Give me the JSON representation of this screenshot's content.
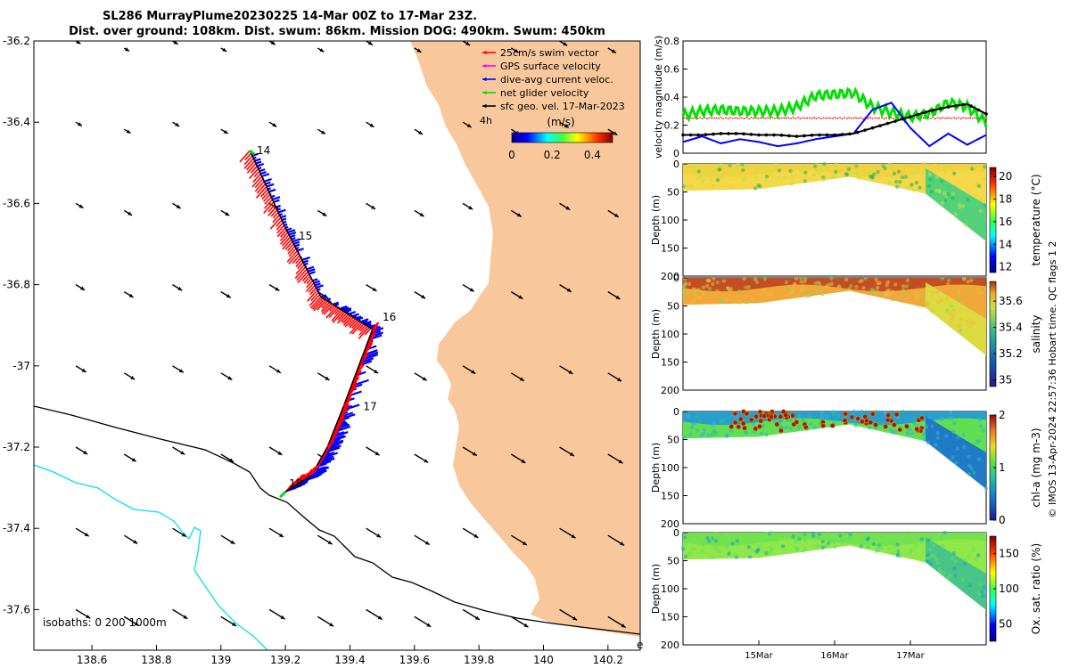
{
  "title": {
    "line1": "SL286 MurrayPlume20230225 14-Mar 00Z to 17-Mar 23Z.",
    "line2": "Dist. over ground: 108km. Dist. swum: 86km. Mission DOG: 490km. Swum: 450km"
  },
  "colors": {
    "land": "#f8c79b",
    "swim": "#ff0000",
    "gps": "#ff00ff",
    "dive": "#0000ff",
    "net": "#00e000",
    "geo": "#000000",
    "isobath200": "#000000",
    "isobath1000": "#00e0f0"
  },
  "chart_data": [
    {
      "type": "scatter",
      "panel": "map",
      "title": "Glider track and velocity vectors",
      "xlim": [
        138.42,
        140.3
      ],
      "ylim": [
        -37.7,
        -36.2
      ],
      "x_ticks": [
        "138.6",
        "138.8",
        "139",
        "139.2",
        "139.4",
        "139.6",
        "139.8",
        "140",
        "140.2"
      ],
      "y_ticks": [
        "-36.2",
        "-36.4",
        "-36.6",
        "-36.8",
        "-37",
        "-37.2",
        "-37.4",
        "-37.6"
      ],
      "track": {
        "lon": [
          139.09,
          139.2,
          139.31,
          139.47,
          139.38,
          139.33,
          139.28,
          139.2
        ],
        "lat": [
          -36.47,
          -36.66,
          -36.83,
          -36.91,
          -37.1,
          -37.2,
          -37.27,
          -37.31
        ]
      },
      "day_labels": [
        {
          "label": "14",
          "lon": 139.1,
          "lat": -36.47
        },
        {
          "label": "15",
          "lon": 139.23,
          "lat": -36.68
        },
        {
          "label": "16",
          "lon": 139.49,
          "lat": -36.88
        },
        {
          "label": "17",
          "lon": 139.43,
          "lat": -37.1
        },
        {
          "label": "18",
          "lon": 139.2,
          "lat": -37.29
        }
      ],
      "geo_vectors": {
        "lon": [
          138.55,
          138.7,
          138.85,
          139.0,
          139.15,
          139.3,
          139.45,
          139.6,
          139.75,
          139.9,
          140.05,
          140.2
        ],
        "lat": [
          -36.2,
          -36.4,
          -36.6,
          -36.8,
          -37.0,
          -37.2,
          -37.4,
          -37.6
        ]
      },
      "legend": [
        {
          "label": "25cm/s swim vector",
          "color": "#ff0000"
        },
        {
          "label": "GPS surface velocity",
          "color": "#ff00ff"
        },
        {
          "label": "dive-avg current veloc.",
          "color": "#0000ff"
        },
        {
          "label": "net glider velocity",
          "color": "#00e000"
        },
        {
          "label": "sfc geo. vel. 17-Mar-2023",
          "color": "#000000"
        }
      ],
      "legend_extra": "4h",
      "colorbar": {
        "label": "(m/s)",
        "ticks": [
          "0",
          "0.2",
          "0.4"
        ],
        "range": [
          0,
          0.5
        ]
      },
      "isobaths_label": "isobaths: 0   200  1000m",
      "edge_label": "e"
    },
    {
      "type": "line",
      "panel": "velocity",
      "ylabel": "velocity magnitude (m/s)",
      "ylim": [
        0,
        0.8
      ],
      "y_ticks": [
        "0",
        "0.2",
        "0.4",
        "0.6",
        "0.8"
      ],
      "x": [
        0,
        0.25,
        0.5,
        0.75,
        1,
        1.25,
        1.5,
        1.75,
        2,
        2.25,
        2.5,
        2.75,
        3,
        3.25,
        3.5,
        3.75,
        4
      ],
      "series": [
        {
          "name": "swim",
          "color": "#ff0000",
          "values": [
            0.25,
            0.25,
            0.25,
            0.25,
            0.25,
            0.25,
            0.25,
            0.25,
            0.25,
            0.25,
            0.25,
            0.25,
            0.25,
            0.25,
            0.25,
            0.25,
            0.25
          ]
        },
        {
          "name": "net",
          "color": "#00e000",
          "values": [
            0.27,
            0.3,
            0.31,
            0.3,
            0.3,
            0.3,
            0.33,
            0.41,
            0.42,
            0.43,
            0.33,
            0.29,
            0.26,
            0.28,
            0.36,
            0.33,
            0.22
          ]
        },
        {
          "name": "dive",
          "color": "#0000ff",
          "values": [
            0.08,
            0.12,
            0.07,
            0.1,
            0.08,
            0.05,
            0.07,
            0.1,
            0.12,
            0.14,
            0.31,
            0.36,
            0.18,
            0.05,
            0.14,
            0.06,
            0.13
          ]
        },
        {
          "name": "geo",
          "color": "#000000",
          "values": [
            0.13,
            0.13,
            0.14,
            0.14,
            0.13,
            0.13,
            0.12,
            0.13,
            0.13,
            0.14,
            0.18,
            0.22,
            0.26,
            0.3,
            0.33,
            0.35,
            0.28
          ]
        }
      ]
    },
    {
      "type": "heatmap",
      "panel": "temperature",
      "ylabel": "Depth (m)",
      "ylim": [
        0,
        200
      ],
      "y_ticks": [
        "0",
        "50",
        "100",
        "150",
        "200"
      ],
      "cbar_label": "temperature (°C)",
      "cbar_ticks": [
        "12",
        "14",
        "16",
        "18",
        "20"
      ],
      "cbar_range": [
        11.5,
        20.8
      ]
    },
    {
      "type": "heatmap",
      "panel": "salinity",
      "ylabel": "Depth (m)",
      "ylim": [
        0,
        200
      ],
      "y_ticks": [
        "0",
        "50",
        "100",
        "150",
        "200"
      ],
      "cbar_label": "salinity",
      "cbar_ticks": [
        "35",
        "35.2",
        "35.4",
        "35.6"
      ],
      "cbar_range": [
        34.95,
        35.75
      ]
    },
    {
      "type": "heatmap",
      "panel": "chla",
      "ylabel": "Depth (m)",
      "ylim": [
        0,
        200
      ],
      "y_ticks": [
        "0",
        "50",
        "100",
        "150",
        "200"
      ],
      "cbar_label": "chl-a (mg m-3)",
      "cbar_ticks": [
        "0",
        "1",
        "2"
      ],
      "cbar_range": [
        0,
        2
      ]
    },
    {
      "type": "heatmap",
      "panel": "oxygen",
      "ylabel": "Depth (m)",
      "ylim": [
        0,
        200
      ],
      "y_ticks": [
        "0",
        "50",
        "100",
        "150",
        "200"
      ],
      "cbar_label": "Ox. sat. ratio (%)",
      "cbar_ticks": [
        "50",
        "100",
        "150"
      ],
      "cbar_range": [
        25,
        175
      ],
      "x_ticks": [
        "15Mar",
        "16Mar",
        "17Mar"
      ],
      "x_tick_values": [
        1,
        2,
        3
      ]
    }
  ],
  "credit": "© IMOS 13-Apr-2024 22:57:36 Hobart time. QC flags 1  2"
}
